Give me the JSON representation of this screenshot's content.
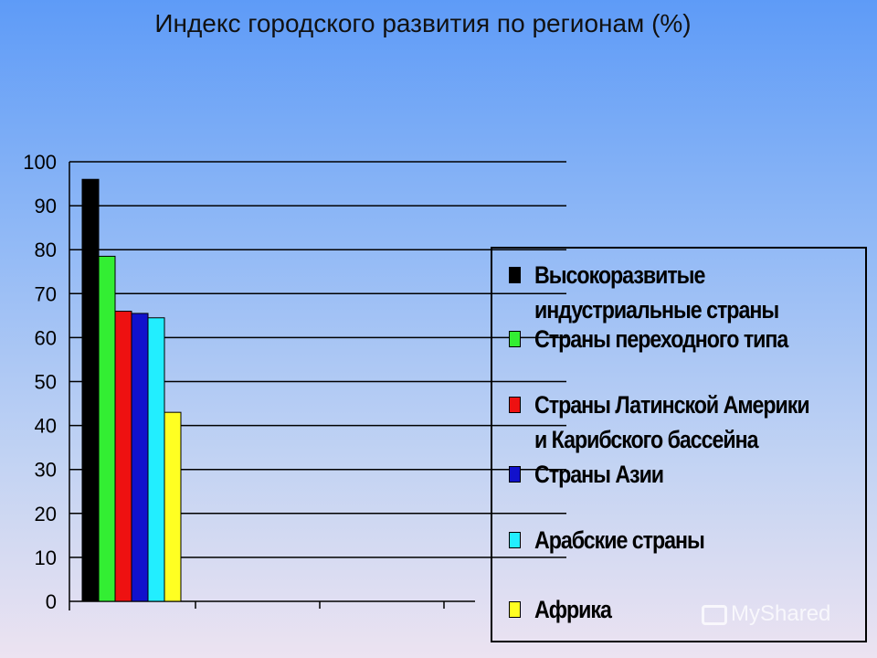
{
  "chart_data": {
    "type": "bar",
    "title": "Индекс городского развития по регионам (%)",
    "xlabel": "",
    "ylabel": "",
    "ylim": [
      0,
      100
    ],
    "yticks": [
      "0",
      "10",
      "20",
      "30",
      "40",
      "50",
      "60",
      "70",
      "80",
      "90",
      "100"
    ],
    "grid": true,
    "legend_position": "right",
    "series": [
      {
        "name": "Высокоразвитые индустриальные страны",
        "values": [
          96
        ],
        "color": "#000000"
      },
      {
        "name": "Страны переходного типа",
        "values": [
          78.5
        ],
        "color": "#33ee33"
      },
      {
        "name": "Страны Латинской Америки и Карибского бассейна",
        "values": [
          66
        ],
        "color": "#ee1111"
      },
      {
        "name": "Страны Азии",
        "values": [
          65.5
        ],
        "color": "#1111cc"
      },
      {
        "name": "Арабские страны",
        "values": [
          64.5
        ],
        "color": "#22eeff"
      },
      {
        "name": "Африка",
        "values": [
          43
        ],
        "color": "#ffff22"
      }
    ]
  },
  "watermark": {
    "text": "MyShared"
  }
}
